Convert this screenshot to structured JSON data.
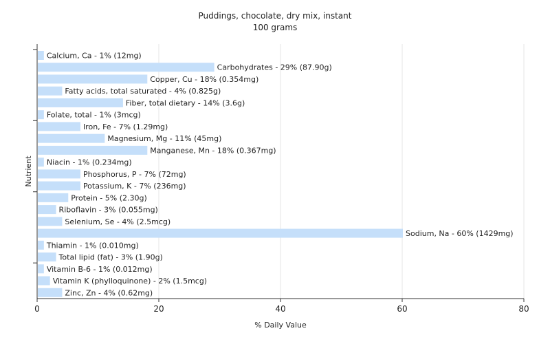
{
  "chart_data": {
    "type": "bar",
    "orientation": "horizontal",
    "title": "Puddings, chocolate, dry mix, instant",
    "subtitle": "100 grams",
    "xlabel": "% Daily Value",
    "ylabel": "Nutrient",
    "xlim": [
      0,
      80
    ],
    "xticks": [
      0,
      20,
      40,
      60,
      80
    ],
    "grid": true,
    "bar_color": "#c5dffa",
    "categories": [
      "Calcium, Ca",
      "Carbohydrates",
      "Copper, Cu",
      "Fatty acids, total saturated",
      "Fiber, total dietary",
      "Folate, total",
      "Iron, Fe",
      "Magnesium, Mg",
      "Manganese, Mn",
      "Niacin",
      "Phosphorus, P",
      "Potassium, K",
      "Protein",
      "Riboflavin",
      "Selenium, Se",
      "Sodium, Na",
      "Thiamin",
      "Total lipid (fat)",
      "Vitamin B-6",
      "Vitamin K (phylloquinone)",
      "Zinc, Zn"
    ],
    "values": [
      1,
      29,
      18,
      4,
      14,
      1,
      7,
      11,
      18,
      1,
      7,
      7,
      5,
      3,
      4,
      60,
      1,
      3,
      1,
      2,
      4
    ],
    "labels": [
      "Calcium, Ca - 1% (12mg)",
      "Carbohydrates - 29% (87.90g)",
      "Copper, Cu - 18% (0.354mg)",
      "Fatty acids, total saturated - 4% (0.825g)",
      "Fiber, total dietary - 14% (3.6g)",
      "Folate, total - 1% (3mcg)",
      "Iron, Fe - 7% (1.29mg)",
      "Magnesium, Mg - 11% (45mg)",
      "Manganese, Mn - 18% (0.367mg)",
      "Niacin - 1% (0.234mg)",
      "Phosphorus, P - 7% (72mg)",
      "Potassium, K - 7% (236mg)",
      "Protein - 5% (2.30g)",
      "Riboflavin - 3% (0.055mg)",
      "Selenium, Se - 4% (2.5mcg)",
      "Sodium, Na - 60% (1429mg)",
      "Thiamin - 1% (0.010mg)",
      "Total lipid (fat) - 3% (1.90g)",
      "Vitamin B-6 - 1% (0.012mg)",
      "Vitamin K (phylloquinone) - 2% (1.5mcg)",
      "Zinc, Zn - 4% (0.62mg)"
    ]
  }
}
